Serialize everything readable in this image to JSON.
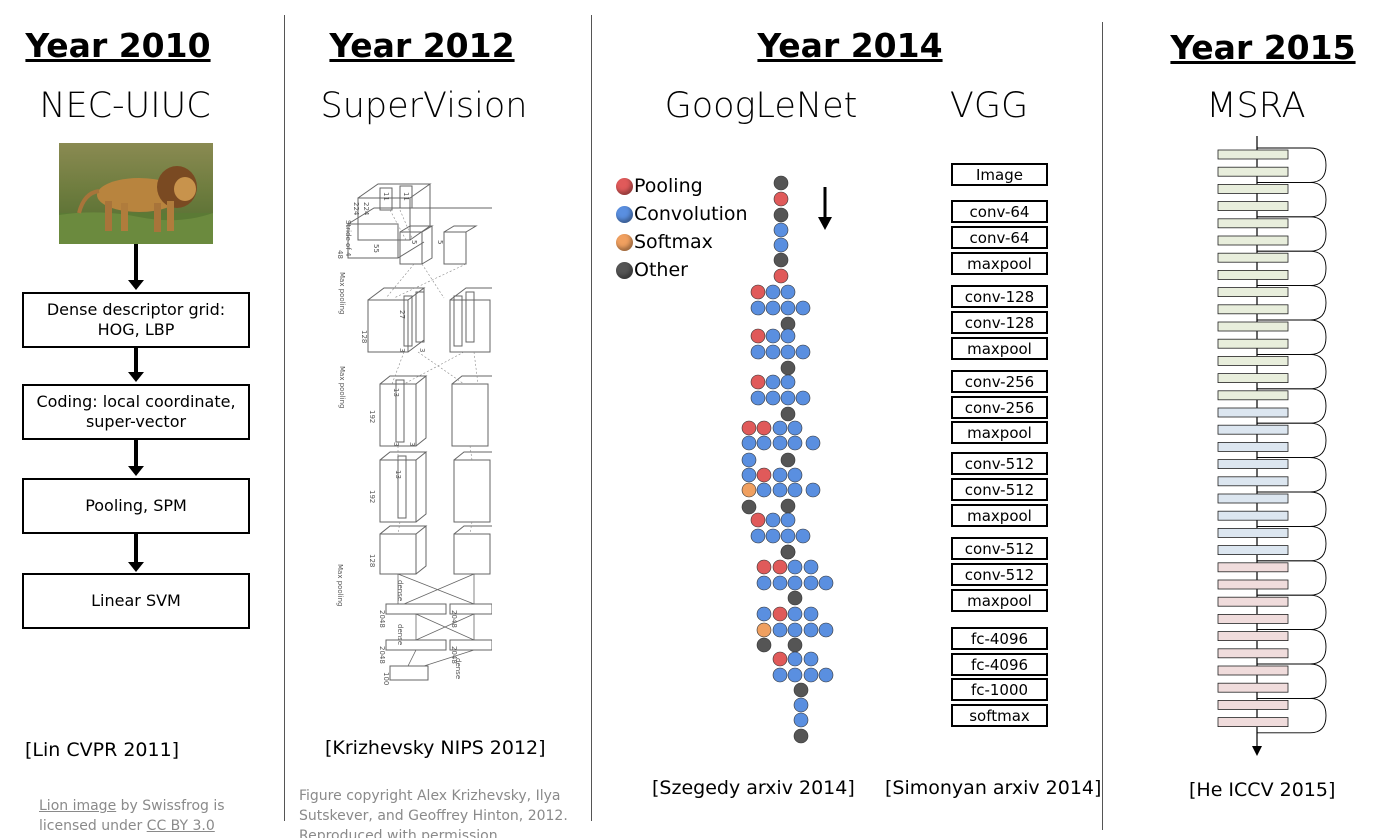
{
  "columns": [
    {
      "year": "Year 2010",
      "name": "NEC-UIUC",
      "pipeline": [
        "Dense descriptor grid: HOG, LBP",
        "Coding: local coordinate, super-vector",
        "Pooling, SPM",
        "Linear SVM"
      ],
      "citation": "[Lin CVPR 2011]",
      "credit": {
        "link_text": "Lion image",
        "mid_text": " by Swissfrog is licensed under ",
        "license_text": "CC BY 3.0"
      }
    },
    {
      "year": "Year 2012",
      "name": "SuperVision",
      "citation": "[Krizhevsky NIPS 2012]",
      "credit": {
        "text": "Figure copyright Alex Krizhevsky, Ilya Sutskever, and Geoffrey Hinton, 2012. Reproduced with permission."
      },
      "figure_labels": [
        "224",
        "224",
        "Stride of 4",
        "11",
        "11",
        "55",
        "5",
        "5",
        "48",
        "Max pooling",
        "128",
        "27",
        "3",
        "3",
        "Max pooling",
        "192",
        "13",
        "3",
        "3",
        "192",
        "13",
        "128",
        "Max pooling",
        "dense",
        "2048",
        "2048",
        "dense",
        "2048",
        "2048",
        "1000",
        "dense"
      ]
    },
    {
      "year": "Year 2014",
      "names": [
        "GoogLeNet",
        "VGG"
      ],
      "legend": [
        {
          "label": "Pooling",
          "color": "#e05a5a"
        },
        {
          "label": "Convolution",
          "color": "#5a8fe0"
        },
        {
          "label": "Softmax",
          "color": "#f0a060"
        },
        {
          "label": "Other",
          "color": "#555555"
        }
      ],
      "vgg_layers": [
        "Image",
        "conv-64",
        "conv-64",
        "maxpool",
        "conv-128",
        "conv-128",
        "maxpool",
        "conv-256",
        "conv-256",
        "maxpool",
        "conv-512",
        "conv-512",
        "maxpool",
        "conv-512",
        "conv-512",
        "maxpool",
        "fc-4096",
        "fc-4096",
        "fc-1000",
        "softmax"
      ],
      "citations": [
        "[Szegedy arxiv 2014]",
        "[Simonyan arxiv 2014]"
      ]
    },
    {
      "year": "Year 2015",
      "name": "MSRA",
      "citation": "[He ICCV 2015]",
      "block_colors": [
        "#e8eedc",
        "#dce6f0",
        "#f0dcdc"
      ]
    }
  ]
}
